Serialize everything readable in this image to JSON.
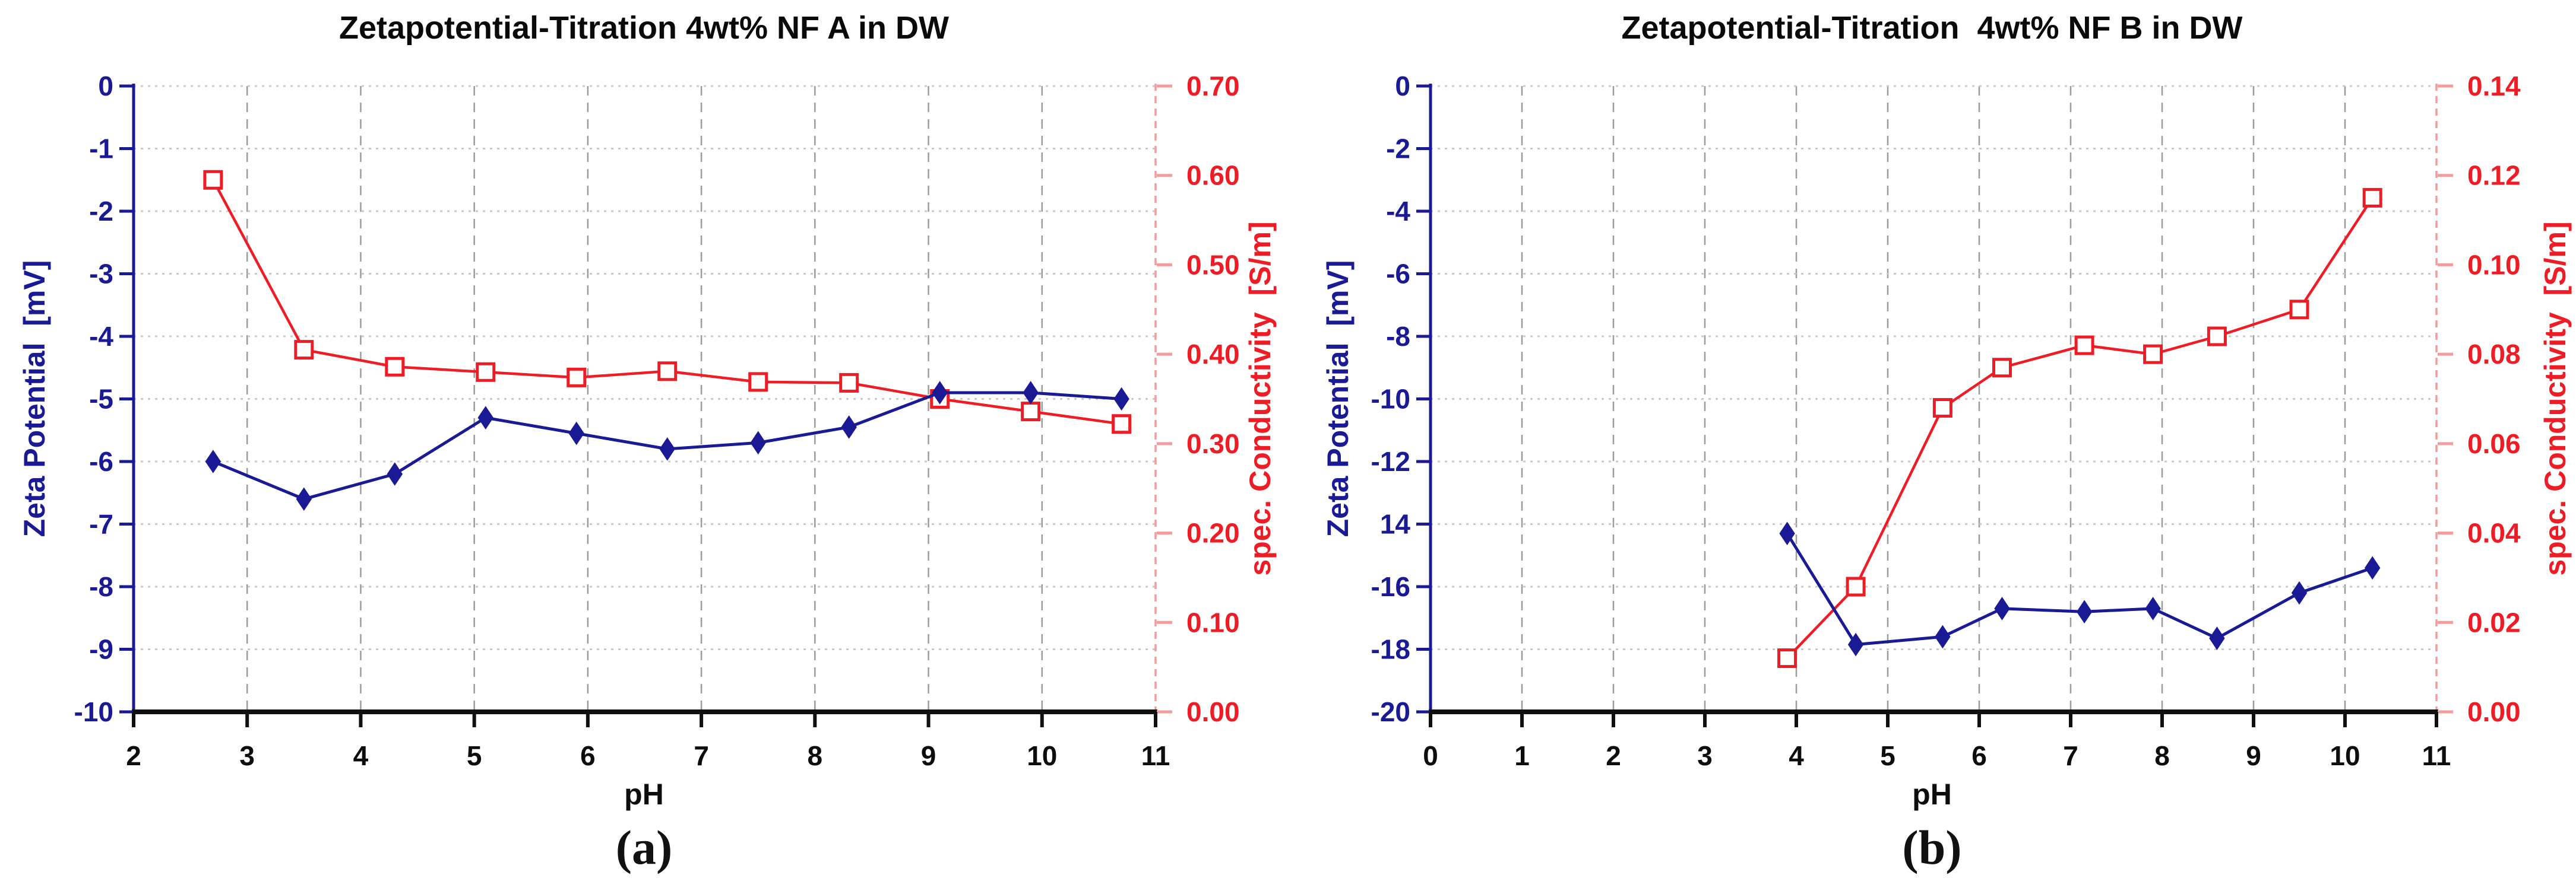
{
  "figure": {
    "background": "#ffffff",
    "grid": {
      "horizontal_style": "dotted",
      "vertical_style": "dashed",
      "horizontal_color": "#c9c9c9",
      "vertical_color": "#9b9b9b"
    }
  },
  "chart_data": [
    {
      "panel": "a",
      "type": "line",
      "title": "Zetapotential-Titration 4wt% NF A in DW",
      "caption": "(a)",
      "legend": "none",
      "x_axis": {
        "label": "pH",
        "min": 2,
        "max": 11,
        "tick_step": 1,
        "tick_labels": [
          "2",
          "3",
          "4",
          "5",
          "6",
          "7",
          "8",
          "9",
          "10",
          "11"
        ],
        "color": "#0d0d0d"
      },
      "y_left": {
        "label": "Zeta Potential  [mV]",
        "min": -10,
        "max": 0,
        "tick_step": 1,
        "tick_labels": [
          "0",
          "-1",
          "-2",
          "-3",
          "-4",
          "-5",
          "-6",
          "-7",
          "-8",
          "-9",
          "-10"
        ],
        "color": "#1a1a94"
      },
      "y_right": {
        "label": "spec. Conductivity  [S/m]",
        "min": 0.0,
        "max": 0.7,
        "tick_step": 0.1,
        "tick_labels": [
          "0.70",
          "0.60",
          "0.50",
          "0.40",
          "0.30",
          "0.20",
          "0.10",
          "0.00"
        ],
        "color": "#ee1c25"
      },
      "series": [
        {
          "name": "spec. Conductivity",
          "axis": "right",
          "color": "#ee1c25",
          "marker": "open-square",
          "x": [
            2.7,
            3.5,
            4.3,
            5.1,
            5.9,
            6.7,
            7.5,
            8.3,
            9.1,
            9.9,
            10.7
          ],
          "y": [
            0.595,
            0.405,
            0.386,
            0.38,
            0.374,
            0.381,
            0.369,
            0.368,
            0.35,
            0.336,
            0.322
          ]
        },
        {
          "name": "Zeta Potential",
          "axis": "left",
          "color": "#1a1a94",
          "marker": "diamond",
          "x": [
            2.7,
            3.5,
            4.3,
            5.1,
            5.9,
            6.7,
            7.5,
            8.3,
            9.1,
            9.9,
            10.7
          ],
          "y": [
            -6.0,
            -6.6,
            -6.2,
            -5.3,
            -5.55,
            -5.8,
            -5.7,
            -5.45,
            -4.9,
            -4.9,
            -5.0
          ]
        }
      ]
    },
    {
      "panel": "b",
      "type": "line",
      "title": "Zetapotential-Titration  4wt% NF B in DW",
      "caption": "(b)",
      "legend": "none",
      "x_axis": {
        "label": "pH",
        "min": 0,
        "max": 11,
        "tick_step": 1,
        "tick_labels": [
          "0",
          "1",
          "2",
          "3",
          "4",
          "5",
          "6",
          "7",
          "8",
          "9",
          "10",
          "11"
        ],
        "color": "#0d0d0d"
      },
      "y_left": {
        "label": "Zeta Potential  [mV]",
        "min": -20,
        "max": 0,
        "tick_step": 2,
        "tick_labels": [
          "0",
          "-2",
          "-4",
          "-6",
          "-8",
          "-10",
          "-12",
          "14",
          "-16",
          "-18",
          "-20"
        ],
        "color": "#1a1a94"
      },
      "y_right": {
        "label": "spec. Conductivity  [S/m]",
        "min": 0.0,
        "max": 0.14,
        "tick_step": 0.02,
        "tick_labels": [
          "0.14",
          "0.12",
          "0.10",
          "0.08",
          "0.06",
          "0.04",
          "0.02",
          "0.00"
        ],
        "color": "#ee1c25"
      },
      "series": [
        {
          "name": "spec. Conductivity",
          "axis": "right",
          "color": "#ee1c25",
          "marker": "open-square",
          "x": [
            3.9,
            4.65,
            5.6,
            6.25,
            7.15,
            7.9,
            8.6,
            9.5,
            10.3
          ],
          "y": [
            0.012,
            0.028,
            0.068,
            0.077,
            0.082,
            0.08,
            0.084,
            0.09,
            0.115
          ]
        },
        {
          "name": "Zeta Potential",
          "axis": "left",
          "color": "#1a1a94",
          "marker": "diamond",
          "x": [
            3.9,
            4.65,
            5.6,
            6.25,
            7.15,
            7.9,
            8.6,
            9.5,
            10.3
          ],
          "y": [
            -14.3,
            -17.85,
            -17.6,
            -16.7,
            -16.8,
            -16.7,
            -17.65,
            -16.2,
            -15.4
          ]
        }
      ]
    }
  ]
}
